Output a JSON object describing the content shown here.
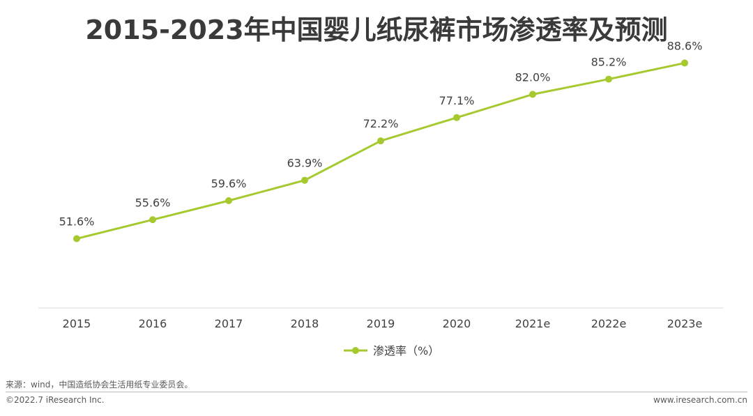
{
  "page": {
    "source": "来源：wind，中国造纸协会生活用纸专业委员会。",
    "copyright": "©2022.7 iResearch Inc.",
    "website": "www.iresearch.com.cn"
  },
  "chart_data": {
    "type": "line",
    "title": "2015-2023年中国婴儿纸尿裤市场渗透率及预测",
    "categories": [
      "2015",
      "2016",
      "2017",
      "2018",
      "2019",
      "2020",
      "2021e",
      "2022e",
      "2023e"
    ],
    "series": [
      {
        "name": "渗透率（%）",
        "values": [
          51.6,
          55.6,
          59.6,
          63.9,
          72.2,
          77.1,
          82.0,
          85.2,
          88.6
        ],
        "labels": [
          "51.6%",
          "55.6%",
          "59.6%",
          "63.9%",
          "72.2%",
          "77.1%",
          "82.0%",
          "85.2%",
          "88.6%"
        ],
        "color": "#a6c92f"
      }
    ],
    "ylim": [
      37,
      96
    ],
    "xlabel": "",
    "ylabel": "",
    "grid": false,
    "legend": "bottom-center",
    "axis_color": "#d9d9d9"
  }
}
